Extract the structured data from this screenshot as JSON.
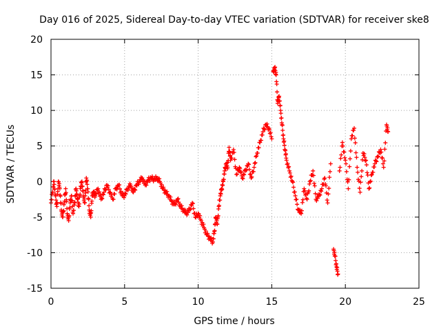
{
  "colors": {
    "series": "#ff0000",
    "grid": "#a0a0a0",
    "axis": "#000000",
    "background": "#ffffff"
  },
  "chart_data": {
    "type": "scatter",
    "title": "Day 016 of 2025, Sidereal Day-to-day VTEC variation (SDTVAR) for receiver ske8",
    "xlabel": "GPS time / hours",
    "ylabel": "SDTVAR / TECUs",
    "xlim": [
      0,
      25
    ],
    "ylim": [
      -15,
      20
    ],
    "xticks": [
      0,
      5,
      10,
      15,
      20,
      25
    ],
    "yticks": [
      -15,
      -10,
      -5,
      0,
      5,
      10,
      15,
      20
    ],
    "xtick_labels": [
      "0",
      "5",
      "10",
      "15",
      "20",
      "25"
    ],
    "ytick_labels": [
      "-15",
      "-10",
      "-5",
      "0",
      "5",
      "10",
      "15",
      "20"
    ],
    "grid": true,
    "marker": "+",
    "series": [
      {
        "name": "ske8",
        "points": [
          [
            0.0,
            -3.0
          ],
          [
            0.1,
            -1.5
          ],
          [
            0.2,
            0.0
          ],
          [
            0.3,
            -2.0
          ],
          [
            0.4,
            -3.5
          ],
          [
            0.5,
            0.0
          ],
          [
            0.6,
            -1.0
          ],
          [
            0.7,
            -4.0
          ],
          [
            0.8,
            -5.0
          ],
          [
            0.9,
            -3.0
          ],
          [
            1.0,
            -1.0
          ],
          [
            1.1,
            -4.5
          ],
          [
            1.2,
            -5.5
          ],
          [
            1.3,
            -3.0
          ],
          [
            1.4,
            -2.0
          ],
          [
            1.5,
            -4.5
          ],
          [
            1.6,
            -3.0
          ],
          [
            1.7,
            -1.0
          ],
          [
            1.8,
            -2.5
          ],
          [
            1.9,
            -3.5
          ],
          [
            2.0,
            -1.0
          ],
          [
            2.1,
            0.0
          ],
          [
            2.2,
            -2.0
          ],
          [
            2.3,
            -3.0
          ],
          [
            2.4,
            0.5
          ],
          [
            2.5,
            -1.0
          ],
          [
            2.6,
            -4.0
          ],
          [
            2.7,
            -5.0
          ],
          [
            2.8,
            -2.0
          ],
          [
            2.9,
            -1.5
          ],
          [
            3.0,
            -2.0
          ],
          [
            3.2,
            -1.0
          ],
          [
            3.4,
            -2.5
          ],
          [
            3.6,
            -1.5
          ],
          [
            3.8,
            -0.5
          ],
          [
            4.0,
            -1.5
          ],
          [
            4.2,
            -2.5
          ],
          [
            4.4,
            -1.0
          ],
          [
            4.6,
            -0.5
          ],
          [
            4.8,
            -1.8
          ],
          [
            5.0,
            -2.0
          ],
          [
            5.2,
            -1.0
          ],
          [
            5.4,
            -0.5
          ],
          [
            5.6,
            -1.5
          ],
          [
            5.8,
            -0.5
          ],
          [
            6.0,
            0.0
          ],
          [
            6.2,
            0.5
          ],
          [
            6.4,
            -0.5
          ],
          [
            6.6,
            0.2
          ],
          [
            6.8,
            0.5
          ],
          [
            7.0,
            0.3
          ],
          [
            7.2,
            0.5
          ],
          [
            7.4,
            0.0
          ],
          [
            7.6,
            -1.0
          ],
          [
            7.8,
            -1.5
          ],
          [
            8.0,
            -2.0
          ],
          [
            8.2,
            -2.8
          ],
          [
            8.4,
            -3.2
          ],
          [
            8.6,
            -2.5
          ],
          [
            8.8,
            -3.5
          ],
          [
            9.0,
            -4.0
          ],
          [
            9.2,
            -4.5
          ],
          [
            9.4,
            -4.0
          ],
          [
            9.6,
            -3.0
          ],
          [
            9.8,
            -5.0
          ],
          [
            10.0,
            -4.5
          ],
          [
            10.2,
            -5.5
          ],
          [
            10.4,
            -6.5
          ],
          [
            10.6,
            -7.5
          ],
          [
            10.8,
            -8.0
          ],
          [
            11.0,
            -8.5
          ],
          [
            11.1,
            -7.0
          ],
          [
            11.2,
            -5.0
          ],
          [
            11.3,
            -6.0
          ],
          [
            11.4,
            -3.5
          ],
          [
            11.5,
            -2.0
          ],
          [
            11.6,
            -1.0
          ],
          [
            11.7,
            0.0
          ],
          [
            11.8,
            1.5
          ],
          [
            11.9,
            2.5
          ],
          [
            12.0,
            2.0
          ],
          [
            12.1,
            4.8
          ],
          [
            12.2,
            3.0
          ],
          [
            12.4,
            4.5
          ],
          [
            12.6,
            1.0
          ],
          [
            12.8,
            2.0
          ],
          [
            13.0,
            0.5
          ],
          [
            13.2,
            1.5
          ],
          [
            13.4,
            2.5
          ],
          [
            13.6,
            0.5
          ],
          [
            13.8,
            2.0
          ],
          [
            14.0,
            4.0
          ],
          [
            14.2,
            5.5
          ],
          [
            14.4,
            7.0
          ],
          [
            14.6,
            8.0
          ],
          [
            14.8,
            7.5
          ],
          [
            15.0,
            6.0
          ],
          [
            15.1,
            15.5
          ],
          [
            15.2,
            16.0
          ],
          [
            15.3,
            15.0
          ],
          [
            15.4,
            11.0
          ],
          [
            15.5,
            12.0
          ],
          [
            15.6,
            10.0
          ],
          [
            15.7,
            8.0
          ],
          [
            15.8,
            6.0
          ],
          [
            15.9,
            4.5
          ],
          [
            16.0,
            3.0
          ],
          [
            16.2,
            1.5
          ],
          [
            16.4,
            0.0
          ],
          [
            16.6,
            -2.0
          ],
          [
            16.8,
            -4.0
          ],
          [
            17.0,
            -4.5
          ],
          [
            17.2,
            -1.0
          ],
          [
            17.4,
            -2.5
          ],
          [
            17.6,
            0.0
          ],
          [
            17.8,
            1.5
          ],
          [
            18.0,
            -2.5
          ],
          [
            18.2,
            -2.0
          ],
          [
            18.4,
            -1.0
          ],
          [
            18.6,
            0.5
          ],
          [
            18.8,
            -3.0
          ],
          [
            19.0,
            2.5
          ],
          [
            19.2,
            -9.5
          ],
          [
            19.3,
            -10.5
          ],
          [
            19.4,
            -12.0
          ],
          [
            19.5,
            -13.0
          ],
          [
            19.6,
            1.5
          ],
          [
            19.8,
            5.5
          ],
          [
            20.0,
            3.0
          ],
          [
            20.2,
            -1.0
          ],
          [
            20.4,
            6.0
          ],
          [
            20.6,
            7.5
          ],
          [
            20.8,
            2.0
          ],
          [
            21.0,
            -1.5
          ],
          [
            21.2,
            4.0
          ],
          [
            21.4,
            3.0
          ],
          [
            21.6,
            -1.0
          ],
          [
            21.8,
            1.0
          ],
          [
            22.0,
            2.5
          ],
          [
            22.2,
            3.5
          ],
          [
            22.4,
            4.5
          ],
          [
            22.6,
            2.0
          ],
          [
            22.8,
            8.0
          ],
          [
            22.9,
            7.0
          ]
        ]
      }
    ]
  }
}
